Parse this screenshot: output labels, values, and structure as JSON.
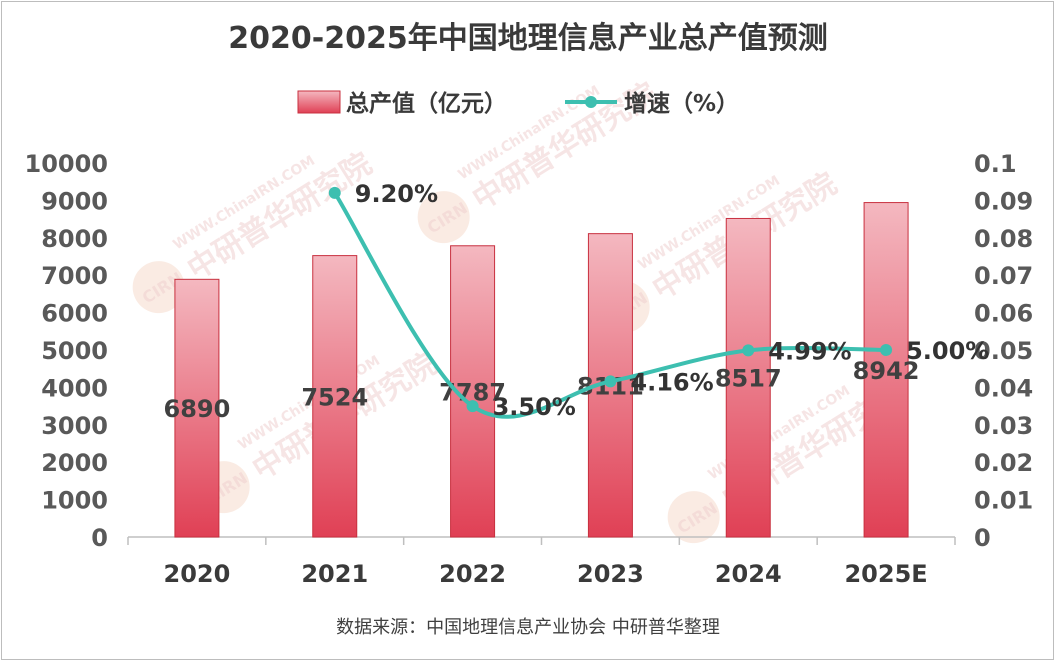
{
  "title": "2020-2025年中国地理信息产业总产值预测",
  "source": "数据来源：中国地理信息产业协会 中研普华整理",
  "legend": {
    "bar": "总产值（亿元）",
    "line": "增速（%）"
  },
  "watermark": {
    "url": "WWW.ChinaIRN.COM",
    "name": "中研普华研究院",
    "logo": "CIRN"
  },
  "colors": {
    "bar_top": "#f4b8c0",
    "bar_bottom": "#e04055",
    "bar_edge": "#c8303f",
    "line": "#3dbfb0"
  },
  "chart_data": {
    "type": "bar",
    "title": "2020-2025年中国地理信息产业总产值预测",
    "categories": [
      "2020",
      "2021",
      "2022",
      "2023",
      "2024",
      "2025E"
    ],
    "series": [
      {
        "name": "总产值（亿元）",
        "type": "bar",
        "axis": "left",
        "values": [
          6890,
          7524,
          7787,
          8111,
          8517,
          8942
        ],
        "labels": [
          "6890",
          "7524",
          "7787",
          "8111",
          "8517",
          "8942"
        ]
      },
      {
        "name": "增速（%）",
        "type": "line",
        "axis": "right",
        "smooth": true,
        "values": [
          null,
          0.092,
          0.035,
          0.0416,
          0.0499,
          0.05
        ],
        "labels": [
          "",
          "9.20%",
          "3.50%",
          "4.16%",
          "4.99%",
          "5.00%"
        ]
      }
    ],
    "y_left": {
      "ylim": [
        0,
        10000
      ],
      "ticks": [
        "0",
        "1000",
        "2000",
        "3000",
        "4000",
        "5000",
        "6000",
        "7000",
        "8000",
        "9000",
        "10000"
      ]
    },
    "y_right": {
      "ylim": [
        0,
        0.1
      ],
      "ticks": [
        "0",
        "0.01",
        "0.02",
        "0.03",
        "0.04",
        "0.05",
        "0.06",
        "0.07",
        "0.08",
        "0.09",
        "0.1"
      ]
    },
    "legend_position": "top-center",
    "grid": false
  }
}
